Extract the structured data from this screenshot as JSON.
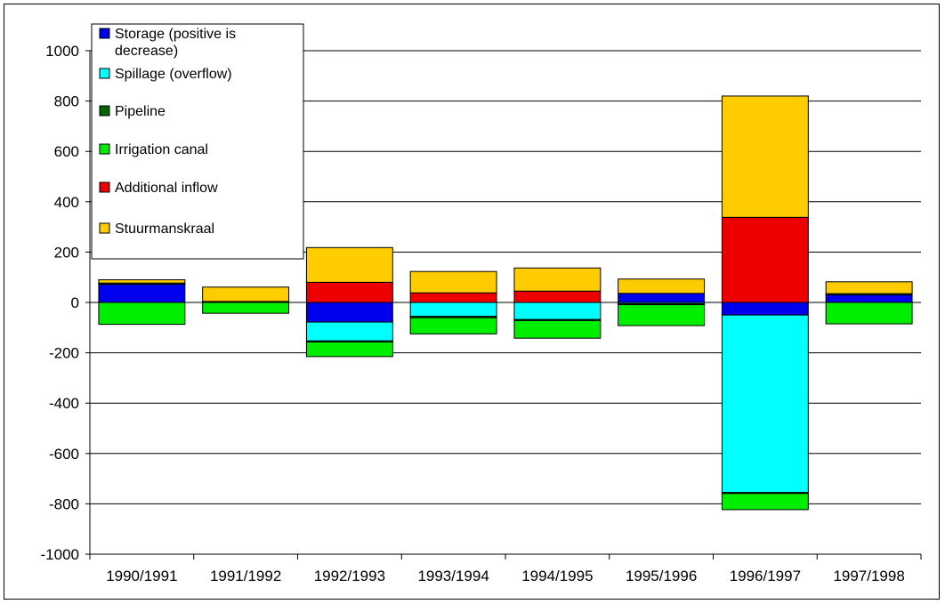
{
  "chart_data": {
    "type": "bar",
    "stacked": true,
    "categories": [
      "1990/1991",
      "1991/1992",
      "1992/1993",
      "1993/1994",
      "1994/1995",
      "1995/1996",
      "1996/1997",
      "1997/1998"
    ],
    "ylim": [
      -1000,
      1000
    ],
    "yticks": [
      1000,
      800,
      600,
      400,
      200,
      0,
      -200,
      -400,
      -600,
      -800,
      -1000
    ],
    "grid": true,
    "legend_position": "top-left",
    "title": "",
    "xlabel": "",
    "ylabel": "",
    "series": [
      {
        "name": "Storage (positive is decrease)",
        "color": "#0000EE",
        "values": [
          72,
          0,
          -78,
          0,
          0,
          36,
          -50,
          30
        ]
      },
      {
        "name": "Spillage (overflow)",
        "color": "#00FFFF",
        "values": [
          0,
          0,
          -75,
          -55,
          -68,
          -5,
          -705,
          0
        ]
      },
      {
        "name": "Pipeline",
        "color": "#006600",
        "values": [
          5,
          4,
          -4,
          -6,
          -4,
          -4,
          -4,
          5
        ]
      },
      {
        "name": "Irrigation canal",
        "color": "#00EE00",
        "values": [
          -87,
          -43,
          -58,
          -64,
          -70,
          -83,
          -64,
          -85
        ]
      },
      {
        "name": "Additional inflow",
        "color": "#EE0000",
        "values": [
          0,
          0,
          80,
          38,
          45,
          0,
          338,
          0
        ]
      },
      {
        "name": "Stuurmanskraal",
        "color": "#FFCC00",
        "values": [
          13,
          57,
          138,
          85,
          92,
          57,
          482,
          47
        ]
      }
    ]
  }
}
